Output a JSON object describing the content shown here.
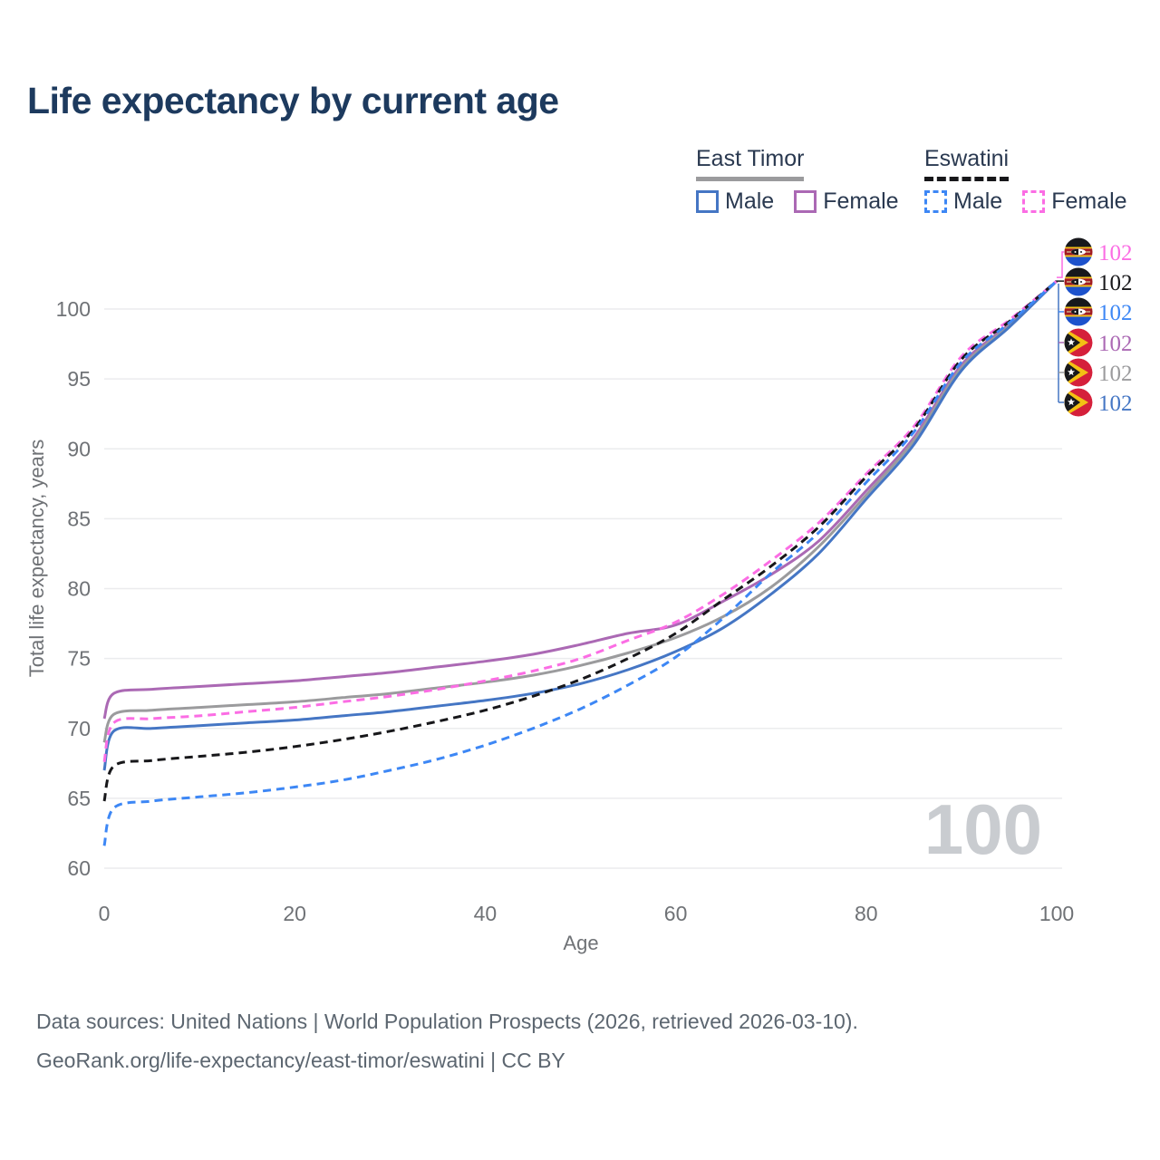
{
  "title": "Life expectancy by current age",
  "watermark": "100",
  "legend": {
    "groups": [
      {
        "country": "East Timor",
        "line_style": "solid",
        "male_label": "Male",
        "female_label": "Female"
      },
      {
        "country": "Eswatini",
        "line_style": "dashed",
        "male_label": "Male",
        "female_label": "Female"
      }
    ]
  },
  "footer": {
    "line1": "Data sources: United Nations | World Population Prospects (2026, retrieved 2026-03-10).",
    "line2": "GeoRank.org/life-expectancy/east-timor/eswatini | CC BY"
  },
  "colors": {
    "et_male": "#4576c4",
    "et_female": "#ab69b4",
    "et_all": "#9b9b9d",
    "esw_male": "#3d87f5",
    "esw_female": "#fb6de4",
    "esw_all": "#17171a",
    "title": "#1d3a5e",
    "tick": "#6f7276",
    "grid": "#ebecee",
    "watermark": "#c9ccd0",
    "footer": "#5c6670"
  },
  "chart_data": {
    "type": "line",
    "title": "Life expectancy by current age",
    "xlabel": "Age",
    "ylabel": "Total life expectancy, years",
    "xlim": [
      0,
      100
    ],
    "ylim": [
      59,
      103
    ],
    "x_ticks": [
      0,
      20,
      40,
      60,
      80,
      100
    ],
    "y_ticks": [
      60,
      65,
      70,
      75,
      80,
      85,
      90,
      95,
      100
    ],
    "grid": "horizontal",
    "legend_position": "top-right",
    "x": [
      0,
      1,
      5,
      10,
      15,
      20,
      25,
      30,
      35,
      40,
      45,
      50,
      55,
      60,
      65,
      70,
      75,
      80,
      85,
      90,
      95,
      100
    ],
    "series": [
      {
        "name": "East Timor Female",
        "country": "East Timor",
        "sex": "Female",
        "line_style": "solid",
        "color": "#ab69b4",
        "flag": "east-timor-flag-icon",
        "end_label": "102",
        "values": [
          70.7,
          72.5,
          72.8,
          73.0,
          73.2,
          73.4,
          73.7,
          74.0,
          74.4,
          74.8,
          75.3,
          76.0,
          76.8,
          77.4,
          79.1,
          81.0,
          83.4,
          87.0,
          90.8,
          96.0,
          98.9,
          102
        ]
      },
      {
        "name": "East Timor Both sexes",
        "country": "East Timor",
        "sex": "All",
        "line_style": "solid",
        "color": "#9b9b9d",
        "flag": "east-timor-flag-icon",
        "end_label": "102",
        "values": [
          69.0,
          71.0,
          71.3,
          71.5,
          71.7,
          71.9,
          72.2,
          72.5,
          72.9,
          73.3,
          73.8,
          74.5,
          75.4,
          76.5,
          78.0,
          80.1,
          83.0,
          86.7,
          90.6,
          95.8,
          98.8,
          102
        ]
      },
      {
        "name": "East Timor Male",
        "country": "East Timor",
        "sex": "Male",
        "line_style": "solid",
        "color": "#4576c4",
        "flag": "east-timor-flag-icon",
        "end_label": "102",
        "values": [
          67.0,
          69.8,
          70.0,
          70.2,
          70.4,
          70.6,
          70.9,
          71.2,
          71.6,
          72.0,
          72.5,
          73.2,
          74.2,
          75.5,
          77.2,
          79.6,
          82.5,
          86.4,
          90.3,
          95.6,
          98.7,
          102
        ]
      },
      {
        "name": "Eswatini Female",
        "country": "Eswatini",
        "sex": "Female",
        "line_style": "dashed",
        "color": "#fb6de4",
        "flag": "eswatini-flag-icon",
        "end_label": "102",
        "values": [
          67.6,
          70.4,
          70.7,
          70.9,
          71.2,
          71.5,
          71.9,
          72.3,
          72.8,
          73.4,
          74.1,
          75.0,
          76.3,
          77.6,
          79.6,
          82.0,
          84.7,
          88.2,
          91.6,
          96.6,
          99.2,
          102
        ]
      },
      {
        "name": "Eswatini Both sexes",
        "country": "Eswatini",
        "sex": "All",
        "line_style": "dashed",
        "color": "#17171a",
        "flag": "eswatini-flag-icon",
        "end_label": "102",
        "values": [
          64.8,
          67.3,
          67.7,
          68.0,
          68.3,
          68.7,
          69.2,
          69.8,
          70.5,
          71.3,
          72.3,
          73.5,
          75.0,
          76.8,
          79.2,
          81.6,
          84.4,
          88.0,
          91.4,
          96.4,
          99.1,
          102
        ]
      },
      {
        "name": "Eswatini Male",
        "country": "Eswatini",
        "sex": "Male",
        "line_style": "dashed",
        "color": "#3d87f5",
        "flag": "eswatini-flag-icon",
        "end_label": "102",
        "values": [
          61.6,
          64.3,
          64.8,
          65.1,
          65.4,
          65.8,
          66.3,
          67.0,
          67.8,
          68.8,
          70.0,
          71.4,
          73.1,
          75.1,
          77.9,
          81.1,
          84.0,
          87.6,
          91.2,
          96.2,
          99.0,
          102
        ]
      }
    ],
    "end_label_order": [
      3,
      4,
      5,
      0,
      1,
      2
    ]
  }
}
